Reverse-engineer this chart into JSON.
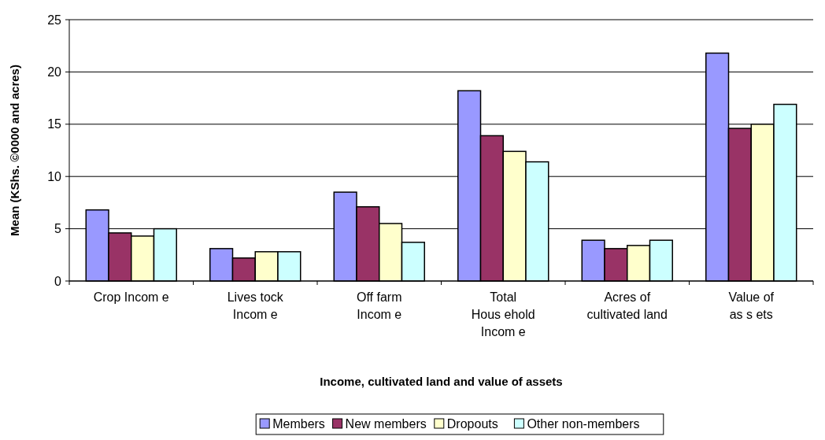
{
  "chart_data": {
    "type": "bar",
    "xlabel": "Income, cultivated land and value of assets",
    "ylabel": "Mean  (KShs. ©0000 and acres)",
    "categories": [
      "Crop Incom e",
      "Lives tock\nIncom e",
      "Off farm\nIncom e",
      "Total\nHous ehold\nIncom e",
      "Acres of\ncultivated land",
      "Value of\nas s ets"
    ],
    "series": [
      {
        "name": "Members",
        "color": "#9999ff",
        "values": [
          6.8,
          3.1,
          8.5,
          18.2,
          3.9,
          21.8
        ]
      },
      {
        "name": "New members",
        "color": "#993366",
        "values": [
          4.6,
          2.2,
          7.1,
          13.9,
          3.1,
          14.6
        ]
      },
      {
        "name": "Dropouts",
        "color": "#ffffcc",
        "values": [
          4.3,
          2.8,
          5.5,
          12.4,
          3.4,
          15.0
        ]
      },
      {
        "name": "Other non-members",
        "color": "#ccffff",
        "values": [
          5.0,
          2.8,
          3.7,
          11.4,
          3.9,
          16.9
        ]
      }
    ],
    "ylim": [
      0,
      25
    ],
    "yticks": [
      0,
      5,
      10,
      15,
      20,
      25
    ],
    "grid": "y",
    "legend": "bottom"
  }
}
